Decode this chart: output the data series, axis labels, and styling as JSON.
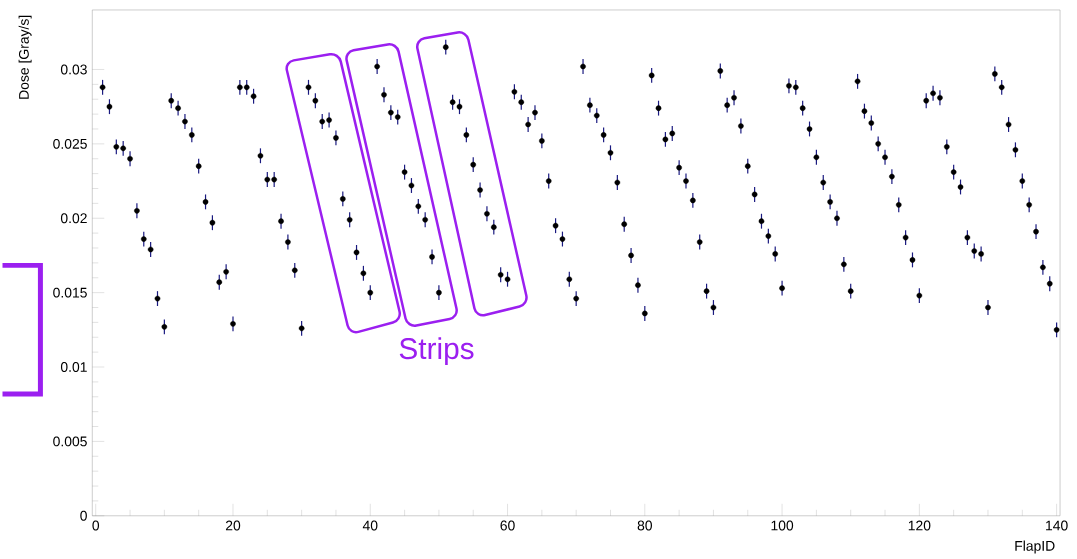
{
  "chart_data": {
    "type": "scatter",
    "xlabel": "FlapID",
    "ylabel": "Dose [Gray/s]",
    "annotations": [
      "Strips"
    ],
    "x": [
      1,
      2,
      3,
      4,
      5,
      6,
      7,
      8,
      9,
      10,
      11,
      12,
      13,
      14,
      15,
      16,
      17,
      18,
      19,
      20,
      21,
      22,
      23,
      24,
      25,
      26,
      27,
      28,
      29,
      30,
      31,
      32,
      33,
      34,
      35,
      36,
      37,
      38,
      39,
      40,
      41,
      42,
      43,
      44,
      45,
      46,
      47,
      48,
      49,
      50,
      51,
      52,
      53,
      54,
      55,
      56,
      57,
      58,
      59,
      60,
      61,
      62,
      63,
      64,
      65,
      66,
      67,
      68,
      69,
      70,
      71,
      72,
      73,
      74,
      75,
      76,
      77,
      78,
      79,
      80,
      81,
      82,
      83,
      84,
      85,
      86,
      87,
      88,
      89,
      90,
      91,
      92,
      93,
      94,
      95,
      96,
      97,
      98,
      99,
      100,
      101,
      102,
      103,
      104,
      105,
      106,
      107,
      108,
      109,
      110,
      111,
      112,
      113,
      114,
      115,
      116,
      117,
      118,
      119,
      120,
      121,
      122,
      123,
      124,
      125,
      126,
      127,
      128,
      129,
      130,
      131,
      132,
      133,
      134,
      135,
      136,
      137,
      138,
      139,
      140
    ],
    "values": [
      0.0288,
      0.0275,
      0.0248,
      0.0247,
      0.024,
      0.0205,
      0.0186,
      0.0179,
      0.0146,
      0.0127,
      0.0279,
      0.0274,
      0.0265,
      0.0256,
      0.0235,
      0.0211,
      0.0197,
      0.0157,
      0.0164,
      0.0129,
      0.0288,
      0.0288,
      0.0282,
      0.0242,
      0.0226,
      0.0226,
      0.0198,
      0.0184,
      0.0165,
      0.0126,
      0.0288,
      0.0279,
      0.0265,
      0.0266,
      0.0254,
      0.0213,
      0.0199,
      0.0177,
      0.0163,
      0.015,
      0.0302,
      0.0283,
      0.0271,
      0.0268,
      0.0231,
      0.0222,
      0.0208,
      0.0199,
      0.0174,
      0.015,
      0.0315,
      0.0278,
      0.0275,
      0.0256,
      0.0236,
      0.0219,
      0.0203,
      0.0194,
      0.0162,
      0.0159,
      0.0285,
      0.0278,
      0.0263,
      0.0271,
      0.0252,
      0.0225,
      0.0195,
      0.0186,
      0.0159,
      0.0146,
      0.0302,
      0.0276,
      0.0269,
      0.0256,
      0.0244,
      0.0224,
      0.0196,
      0.0175,
      0.0155,
      0.0136,
      0.0296,
      0.0274,
      0.0253,
      0.0257,
      0.0234,
      0.0225,
      0.0212,
      0.0184,
      0.0151,
      0.014,
      0.0299,
      0.0276,
      0.0281,
      0.0262,
      0.0235,
      0.0216,
      0.0198,
      0.0188,
      0.0176,
      0.0153,
      0.0289,
      0.0288,
      0.0274,
      0.026,
      0.0241,
      0.0224,
      0.0211,
      0.02,
      0.0169,
      0.0151,
      0.0292,
      0.0272,
      0.0264,
      0.025,
      0.0241,
      0.0228,
      0.0209,
      0.0187,
      0.0172,
      0.0148,
      0.0279,
      0.0284,
      0.0281,
      0.0248,
      0.0231,
      0.0221,
      0.0187,
      0.0178,
      0.0176,
      0.014,
      0.0297,
      0.0288,
      0.0263,
      0.0246,
      0.0225,
      0.0209,
      0.0191,
      0.0167,
      0.0156,
      0.0125
    ],
    "errors": [
      0.0005,
      0.0005,
      0.0005,
      0.0005,
      0.0005,
      0.0005,
      0.0005,
      0.0005,
      0.0005,
      0.0005,
      0.0005,
      0.0005,
      0.0005,
      0.0005,
      0.0005,
      0.0005,
      0.0005,
      0.0005,
      0.0005,
      0.0005,
      0.0005,
      0.0005,
      0.0005,
      0.0005,
      0.0005,
      0.0005,
      0.0005,
      0.0005,
      0.0005,
      0.0005,
      0.0005,
      0.0005,
      0.0005,
      0.0005,
      0.0005,
      0.0005,
      0.0005,
      0.0005,
      0.0005,
      0.0005,
      0.0005,
      0.0005,
      0.0005,
      0.0005,
      0.0005,
      0.0005,
      0.0005,
      0.0005,
      0.0005,
      0.0005,
      0.0005,
      0.0005,
      0.0005,
      0.0005,
      0.0005,
      0.0005,
      0.0005,
      0.0005,
      0.0005,
      0.0005,
      0.0005,
      0.0005,
      0.0005,
      0.0005,
      0.0005,
      0.0005,
      0.0005,
      0.0005,
      0.0005,
      0.0005,
      0.0005,
      0.0005,
      0.0005,
      0.0005,
      0.0005,
      0.0005,
      0.0005,
      0.0005,
      0.0005,
      0.0005,
      0.0005,
      0.0005,
      0.0005,
      0.0005,
      0.0005,
      0.0005,
      0.0005,
      0.0005,
      0.0005,
      0.0005,
      0.0005,
      0.0005,
      0.0005,
      0.0005,
      0.0005,
      0.0005,
      0.0005,
      0.0005,
      0.0005,
      0.0005,
      0.0005,
      0.0005,
      0.0005,
      0.0005,
      0.0005,
      0.0005,
      0.0005,
      0.0005,
      0.0005,
      0.0005,
      0.0005,
      0.0005,
      0.0005,
      0.0005,
      0.0005,
      0.0005,
      0.0005,
      0.0005,
      0.0005,
      0.0005,
      0.0005,
      0.0005,
      0.0005,
      0.0005,
      0.0005,
      0.0005,
      0.0005,
      0.0005,
      0.0005,
      0.0005,
      0.0005,
      0.0005,
      0.0005,
      0.0005,
      0.0005,
      0.0005,
      0.0005,
      0.0005,
      0.0005,
      0.0005
    ],
    "color": "#000000",
    "xlim": [
      -0.5,
      140.5
    ],
    "ylim": [
      0,
      0.034
    ],
    "xticks": [
      0,
      20,
      40,
      60,
      80,
      100,
      120,
      140
    ],
    "yticks": [
      0,
      0.005,
      0.01,
      0.015,
      0.02,
      0.025,
      0.03
    ]
  }
}
